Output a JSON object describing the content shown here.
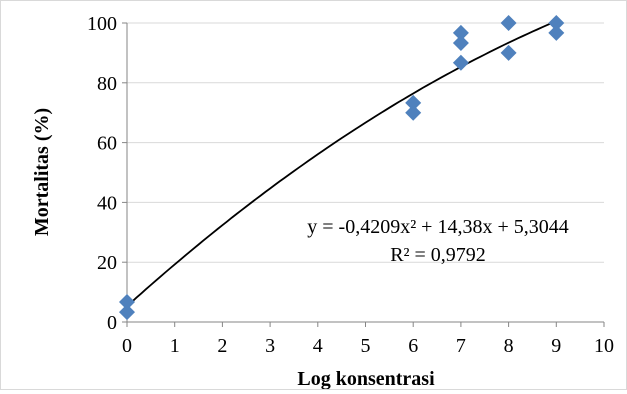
{
  "chart_data": {
    "type": "scatter",
    "xlabel": "Log konsentrasi",
    "ylabel": "Mortalitas (%)",
    "xlim": [
      0,
      10
    ],
    "ylim": [
      0,
      100
    ],
    "xticks": [
      0,
      1,
      2,
      3,
      4,
      5,
      6,
      7,
      8,
      9,
      10
    ],
    "yticks": [
      0,
      20,
      40,
      60,
      80,
      100
    ],
    "grid": "horizontal",
    "legend": "none",
    "marker": "diamond",
    "marker_color": "#4f81bd",
    "trendline_color": "#000000",
    "series": [
      {
        "x": [
          0,
          0,
          6,
          6,
          7,
          7,
          7,
          8,
          8,
          9,
          9
        ],
        "y": [
          3.3,
          6.7,
          70,
          73.3,
          86.7,
          93.3,
          96.7,
          90,
          100,
          96.7,
          100
        ]
      }
    ],
    "trendline": {
      "type": "polynomial",
      "coefficients": {
        "a": -0.4209,
        "b": 14.38,
        "c": 5.3044
      },
      "x_range": [
        0,
        9
      ],
      "equation_text": "y = -0,4209x² + 14,38x + 5,3044",
      "r2_text": "R² = 0,9792"
    }
  }
}
